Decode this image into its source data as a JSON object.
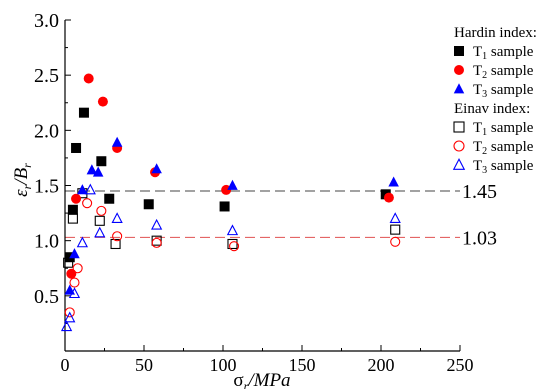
{
  "chart_data": {
    "type": "scatter",
    "xlabel_symbol": "σ",
    "xlabel_sub": "r",
    "xlabel_rest": "/MPa",
    "ylabel_symbol": "ε",
    "ylabel_sub": "r",
    "ylabel_rest": "/B",
    "ylabel_sub2": "r",
    "xlim": [
      0,
      250
    ],
    "ylim": [
      0,
      3.0
    ],
    "xticks": [
      "0",
      "50",
      "100",
      "150",
      "200",
      "250"
    ],
    "yticks": [
      "0.5",
      "1.0",
      "1.5",
      "2.0",
      "2.5",
      "3.0"
    ],
    "reference_lines": [
      {
        "label": "1.45",
        "y": 1.45,
        "color": "#444444"
      },
      {
        "label": "1.03",
        "y": 1.03,
        "color": "#e05050"
      }
    ],
    "legend_groups": [
      {
        "title": "Hardin index:",
        "entries": [
          0,
          1,
          2
        ]
      },
      {
        "title": "Einav index:",
        "entries": [
          3,
          4,
          5
        ]
      }
    ],
    "series": [
      {
        "name": "T1 sample",
        "name_main": "T",
        "name_sub": "1",
        "name_rest": " sample",
        "group": "Hardin",
        "marker": "square",
        "filled": true,
        "color": "#000000",
        "x": [
          3,
          5,
          7,
          12,
          23,
          28,
          53,
          101,
          203
        ],
        "y": [
          0.85,
          1.28,
          1.84,
          2.16,
          1.72,
          1.38,
          1.33,
          1.31,
          1.42
        ]
      },
      {
        "name": "T2 sample",
        "name_main": "T",
        "name_sub": "2",
        "name_rest": " sample",
        "group": "Hardin",
        "marker": "circle",
        "filled": true,
        "color": "#ff0000",
        "x": [
          4,
          7,
          15,
          24,
          33,
          57,
          102,
          205
        ],
        "y": [
          0.7,
          1.38,
          2.47,
          2.26,
          1.84,
          1.62,
          1.46,
          1.39
        ]
      },
      {
        "name": "T3 sample",
        "name_main": "T",
        "name_sub": "3",
        "name_rest": " sample",
        "group": "Hardin",
        "marker": "triangle",
        "filled": true,
        "color": "#0000ff",
        "x": [
          3,
          6,
          11,
          17,
          21,
          33,
          58,
          106,
          208
        ],
        "y": [
          0.55,
          0.88,
          1.46,
          1.64,
          1.62,
          1.89,
          1.65,
          1.5,
          1.53
        ]
      },
      {
        "name": "T1 sample",
        "name_main": "T",
        "name_sub": "1",
        "name_rest": " sample",
        "group": "Einav",
        "marker": "square",
        "filled": false,
        "color": "#000000",
        "x": [
          2,
          5,
          11,
          22,
          32,
          58,
          106,
          209
        ],
        "y": [
          0.8,
          1.2,
          1.43,
          1.18,
          0.97,
          1.0,
          0.97,
          1.1
        ]
      },
      {
        "name": "T2 sample",
        "name_main": "T",
        "name_sub": "2",
        "name_rest": " sample",
        "group": "Einav",
        "marker": "circle",
        "filled": false,
        "color": "#ff0000",
        "x": [
          3,
          6,
          8,
          14,
          23,
          33,
          58,
          107,
          209
        ],
        "y": [
          0.35,
          0.62,
          0.75,
          1.34,
          1.27,
          1.04,
          0.98,
          0.95,
          0.99
        ]
      },
      {
        "name": "T3 sample",
        "name_main": "T",
        "name_sub": "3",
        "name_rest": " sample",
        "group": "Einav",
        "marker": "triangle",
        "filled": false,
        "color": "#0000ff",
        "x": [
          1,
          3,
          6,
          11,
          16,
          22,
          33,
          58,
          106,
          209
        ],
        "y": [
          0.22,
          0.3,
          0.52,
          0.98,
          1.46,
          1.07,
          1.2,
          1.14,
          1.09,
          1.2
        ]
      }
    ]
  }
}
